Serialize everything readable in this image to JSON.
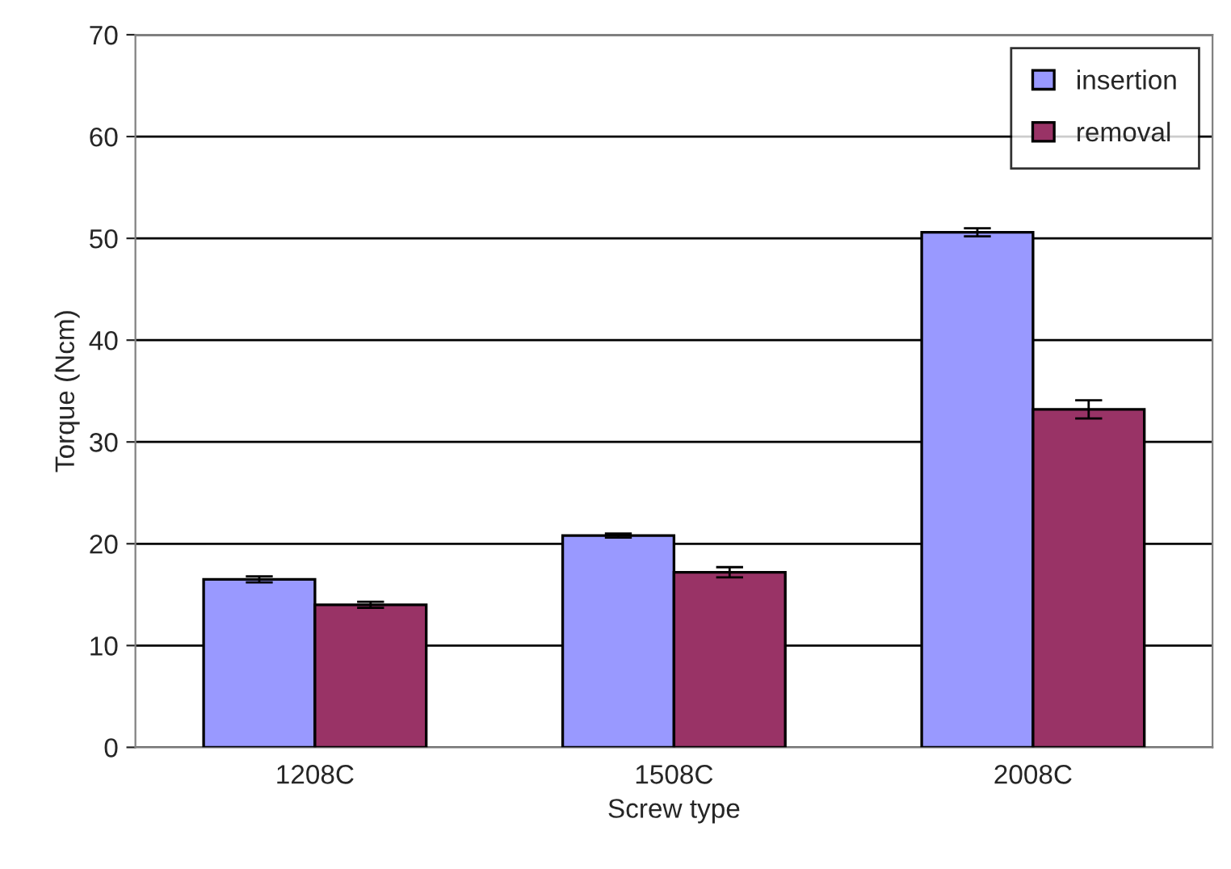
{
  "chart_data": {
    "type": "bar",
    "xlabel": "Screw type",
    "ylabel": "Torque (Ncm)",
    "categories": [
      "1208C",
      "1508C",
      "2008C"
    ],
    "series": [
      {
        "name": "insertion",
        "color": "#9999ff",
        "values": [
          16.5,
          20.8,
          50.6
        ],
        "errors": [
          0.3,
          0.2,
          0.4
        ]
      },
      {
        "name": "removal",
        "color": "#993366",
        "values": [
          14.0,
          17.2,
          33.2
        ],
        "errors": [
          0.3,
          0.5,
          0.9
        ]
      }
    ],
    "ylim": [
      0,
      70
    ],
    "yticks": [
      0,
      10,
      20,
      30,
      40,
      50,
      60,
      70
    ],
    "grid": "y",
    "legend": "top right"
  }
}
